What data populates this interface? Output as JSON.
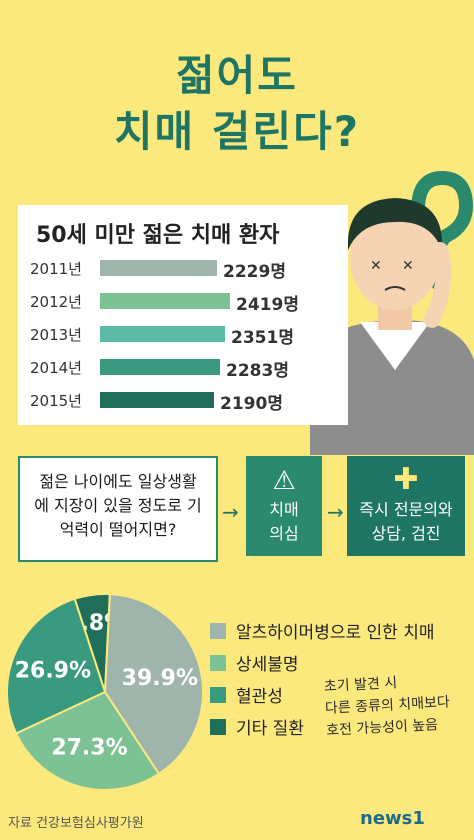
{
  "header": {
    "line1": "젊어도",
    "line2": "치매 걸린다?"
  },
  "bars": {
    "title": "50세 미만 젊은 치매 환자",
    "rows": [
      {
        "year": "2011년",
        "value": 2229,
        "label": "2229명",
        "color": "#9fb5ab"
      },
      {
        "year": "2012년",
        "value": 2419,
        "label": "2419명",
        "color": "#7cc295"
      },
      {
        "year": "2013년",
        "value": 2351,
        "label": "2351명",
        "color": "#5bbba6"
      },
      {
        "year": "2014년",
        "value": 2283,
        "label": "2283명",
        "color": "#3a9a80"
      },
      {
        "year": "2015년",
        "value": 2190,
        "label": "2190명",
        "color": "#1f6e5a"
      }
    ]
  },
  "flow": {
    "step1": "젊은 나이에도 일상생활에 지장이 있을 정도로 기억력이 떨어지면?",
    "step2_line1": "치매",
    "step2_line2": "의심",
    "step3_line1": "즉시 전문의와",
    "step3_line2": "상담, 검진"
  },
  "chart_data": {
    "type": "pie",
    "slices": [
      {
        "name": "알츠하이머병으로 인한 치매",
        "value": 39.9,
        "label": "39.9%",
        "color": "#9fb5ab"
      },
      {
        "name": "상세불명",
        "value": 27.3,
        "label": "27.3%",
        "color": "#7cc295"
      },
      {
        "name": "혈관성",
        "value": 26.9,
        "label": "26.9%",
        "color": "#3a9a80"
      },
      {
        "name": "기타 질환",
        "value": 5.8,
        "label": "5.8%",
        "color": "#1f6e5a"
      }
    ]
  },
  "note": {
    "line1": "초기 발견 시",
    "line2": "다른 종류의 치매보다",
    "line3": "호전 가능성이 높음"
  },
  "footer": {
    "source": "자료 건강보험심사평가원",
    "brand": "news1"
  }
}
